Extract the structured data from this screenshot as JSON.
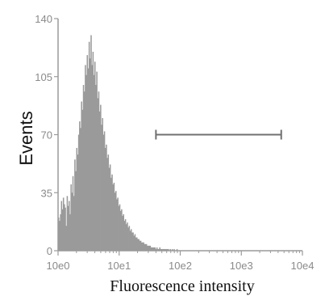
{
  "chart_data": {
    "type": "bar",
    "title": "",
    "xlabel": "Fluorescence intensity",
    "ylabel": "Events",
    "x_scale": "log",
    "xlim": [
      1,
      10000
    ],
    "ylim": [
      0,
      140
    ],
    "x_ticks": [
      {
        "value": 1,
        "label": "10e0"
      },
      {
        "value": 10,
        "label": "10e1"
      },
      {
        "value": 100,
        "label": "10e2"
      },
      {
        "value": 1000,
        "label": "10e3"
      },
      {
        "value": 10000,
        "label": "10e4"
      }
    ],
    "y_ticks": [
      {
        "value": 0,
        "label": "0"
      },
      {
        "value": 35,
        "label": "35"
      },
      {
        "value": 70,
        "label": "70"
      },
      {
        "value": 105,
        "label": "105"
      },
      {
        "value": 140,
        "label": "140"
      }
    ],
    "grid": false,
    "histogram": {
      "bin_start": 1,
      "bin_end": 10000,
      "bin_count": 256,
      "counts": [
        20,
        18,
        22,
        30,
        25,
        32,
        28,
        26,
        15,
        33,
        27,
        30,
        22,
        40,
        35,
        45,
        33,
        55,
        48,
        62,
        58,
        70,
        78,
        74,
        90,
        85,
        100,
        96,
        112,
        106,
        118,
        110,
        126,
        116,
        130,
        112,
        120,
        106,
        114,
        100,
        108,
        92,
        96,
        84,
        88,
        76,
        80,
        70,
        72,
        62,
        64,
        56,
        58,
        50,
        52,
        44,
        46,
        40,
        41,
        35,
        36,
        31,
        32,
        27,
        28,
        24,
        25,
        21,
        22,
        18,
        19,
        16,
        17,
        14,
        15,
        12,
        13,
        11,
        11,
        9,
        10,
        8,
        8,
        7,
        7,
        6,
        6,
        5,
        5,
        5,
        4,
        4,
        4,
        3,
        3,
        3,
        3,
        2,
        2,
        2,
        2,
        2,
        1,
        2,
        1,
        1,
        2,
        1,
        1,
        1,
        1,
        1,
        1,
        1,
        1,
        1,
        0,
        1,
        0,
        1,
        0,
        1,
        0,
        0,
        1,
        0,
        0,
        0,
        0,
        0,
        0,
        0,
        0,
        0,
        0,
        0,
        0,
        0,
        0,
        0,
        0,
        0,
        0,
        0,
        0,
        0,
        0,
        0,
        0,
        0,
        0,
        0,
        0,
        0,
        0,
        0,
        0,
        0,
        0,
        0,
        0,
        0,
        0,
        0,
        0,
        0,
        0,
        0,
        0,
        0,
        0,
        0,
        0,
        0,
        0,
        0,
        0,
        0,
        0,
        0,
        0,
        0,
        0,
        0,
        0,
        0,
        0,
        0,
        0,
        0,
        0,
        0,
        0,
        0,
        0,
        0,
        0,
        0,
        0,
        0,
        0,
        0,
        0,
        0,
        0,
        0,
        0,
        0,
        0,
        0,
        0,
        0,
        0,
        0,
        0,
        0,
        0,
        0,
        0,
        0,
        0,
        0,
        0,
        0,
        0,
        0,
        0,
        0,
        0,
        0,
        0,
        0,
        0,
        0,
        0,
        0,
        0,
        0,
        0,
        0,
        0,
        0,
        0,
        0,
        0,
        0,
        0,
        0,
        0,
        0,
        0,
        0,
        0,
        0,
        0,
        0
      ],
      "color": "#9a9a9a"
    },
    "gate": {
      "x_start": 40,
      "x_end": 4500,
      "y": 70,
      "color": "#707070"
    },
    "colors": {
      "axis": "#9a9a9a",
      "tick_label": "#8a8a8a",
      "axis_title": "#111111"
    }
  }
}
